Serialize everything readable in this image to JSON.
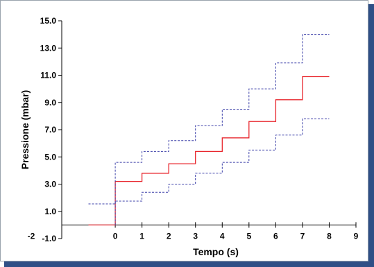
{
  "chart_data": {
    "type": "line",
    "xlabel": "Tempo (s)",
    "ylabel": "Pressione (mbar)",
    "xlim": [
      -2,
      9
    ],
    "ylim": [
      -1.0,
      15.0
    ],
    "x_ticks": [
      "-2",
      "0",
      "1",
      "2",
      "3",
      "4",
      "5",
      "6",
      "7",
      "8",
      "9"
    ],
    "y_ticks": [
      "-1.0",
      "1.0",
      "3.0",
      "5.0",
      "7.0",
      "9.0",
      "11.0",
      "13.0",
      "15.0"
    ],
    "grid": false,
    "series": [
      {
        "style": "solid",
        "color": "#e8262d",
        "points": [
          [
            -1,
            0.0
          ],
          [
            0,
            0.0
          ],
          [
            0,
            3.2
          ],
          [
            1,
            3.2
          ],
          [
            1,
            3.8
          ],
          [
            2,
            3.8
          ],
          [
            2,
            4.5
          ],
          [
            3,
            4.5
          ],
          [
            3,
            5.4
          ],
          [
            4,
            5.4
          ],
          [
            4,
            6.4
          ],
          [
            5,
            6.4
          ],
          [
            5,
            7.6
          ],
          [
            6,
            7.6
          ],
          [
            6,
            9.2
          ],
          [
            7,
            9.2
          ],
          [
            7,
            10.9
          ],
          [
            8,
            10.9
          ]
        ]
      },
      {
        "style": "dashed",
        "color": "#3b3fa8",
        "points": [
          [
            -1,
            1.55
          ],
          [
            0,
            1.55
          ],
          [
            0,
            4.6
          ],
          [
            1,
            4.6
          ],
          [
            1,
            5.4
          ],
          [
            2,
            5.4
          ],
          [
            2,
            6.2
          ],
          [
            3,
            6.2
          ],
          [
            3,
            7.3
          ],
          [
            4,
            7.3
          ],
          [
            4,
            8.5
          ],
          [
            5,
            8.5
          ],
          [
            5,
            10.0
          ],
          [
            6,
            10.0
          ],
          [
            6,
            11.9
          ],
          [
            7,
            11.9
          ],
          [
            7,
            14.0
          ],
          [
            8,
            14.0
          ]
        ]
      },
      {
        "style": "dashed",
        "color": "#3b3fa8",
        "points": [
          [
            0,
            0.0
          ],
          [
            0,
            1.75
          ],
          [
            1,
            1.75
          ],
          [
            1,
            2.4
          ],
          [
            2,
            2.4
          ],
          [
            2,
            3.0
          ],
          [
            3,
            3.0
          ],
          [
            3,
            3.8
          ],
          [
            4,
            3.8
          ],
          [
            4,
            4.6
          ],
          [
            5,
            4.6
          ],
          [
            5,
            5.5
          ],
          [
            6,
            5.5
          ],
          [
            6,
            6.6
          ],
          [
            7,
            6.6
          ],
          [
            7,
            7.8
          ],
          [
            8,
            7.8
          ]
        ]
      }
    ]
  }
}
